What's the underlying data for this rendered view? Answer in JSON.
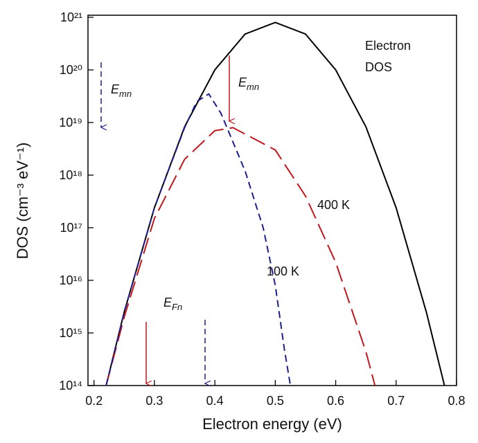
{
  "chart_data": {
    "type": "line",
    "x_label": "Electron energy (eV)",
    "y_label": "DOS (cm⁻³ eV⁻¹)",
    "xlim": [
      0.19,
      0.8
    ],
    "xticks": [
      0.2,
      0.3,
      0.4,
      0.5,
      0.6,
      0.7,
      0.8
    ],
    "ylim": [
      100000000000000.0,
      1e+21
    ],
    "log_y": true,
    "yticks": [
      {
        "value": 100000000000000.0,
        "label": "10¹⁴"
      },
      {
        "value": 1000000000000000.0,
        "label": "10¹⁵"
      },
      {
        "value": 1e+16,
        "label": "10¹⁶"
      },
      {
        "value": 1e+17,
        "label": "10¹⁷"
      },
      {
        "value": 1e+18,
        "label": "10¹⁸"
      },
      {
        "value": 1e+19,
        "label": "10¹⁹"
      },
      {
        "value": 1e+20,
        "label": "10²⁰"
      },
      {
        "value": 1e+21,
        "label": "10²¹"
      }
    ],
    "series": [
      {
        "name": "Electron DOS",
        "color": "#000000",
        "dash": "none",
        "x": [
          0.22,
          0.25,
          0.3,
          0.35,
          0.4,
          0.45,
          0.5,
          0.55,
          0.6,
          0.65,
          0.7,
          0.75,
          0.78
        ],
        "values": [
          100000000000000.0,
          2500000000000000.0,
          2.4e+17,
          8.3e+18,
          1e+20,
          4.8e+20,
          8e+20,
          4.8e+20,
          1e+20,
          8.3e+18,
          2.4e+17,
          2500000000000000.0,
          100000000000000.0
        ]
      },
      {
        "name": "400 K",
        "color": "#c0161c",
        "dash": "24 9",
        "x": [
          0.22,
          0.25,
          0.3,
          0.35,
          0.4,
          0.43,
          0.5,
          0.55,
          0.6,
          0.65,
          0.665
        ],
        "values": [
          100000000000000.0,
          2000000000000000.0,
          1.5e+17,
          2e+18,
          7e+18,
          8e+18,
          3e+18,
          4e+17,
          2.2e+16,
          440000000000000.0,
          100000000000000.0
        ]
      },
      {
        "name": "100 K",
        "color": "#1c1f8c",
        "dash": "10 6",
        "x": [
          0.22,
          0.25,
          0.3,
          0.35,
          0.37,
          0.39,
          0.41,
          0.45,
          0.48,
          0.5,
          0.515,
          0.525
        ],
        "values": [
          100000000000000.0,
          2500000000000000.0,
          2.4e+17,
          8e+18,
          2.5e+19,
          3.5e+19,
          1.5e+19,
          1.2e+18,
          1e+17,
          8000000000000000.0,
          500000000000000.0,
          100000000000000.0
        ]
      }
    ],
    "annotations": [
      {
        "text": "E",
        "sub": "mn"
      },
      {
        "text": "E",
        "sub": "mn"
      },
      {
        "text": "E",
        "sub": "Fn"
      }
    ]
  }
}
